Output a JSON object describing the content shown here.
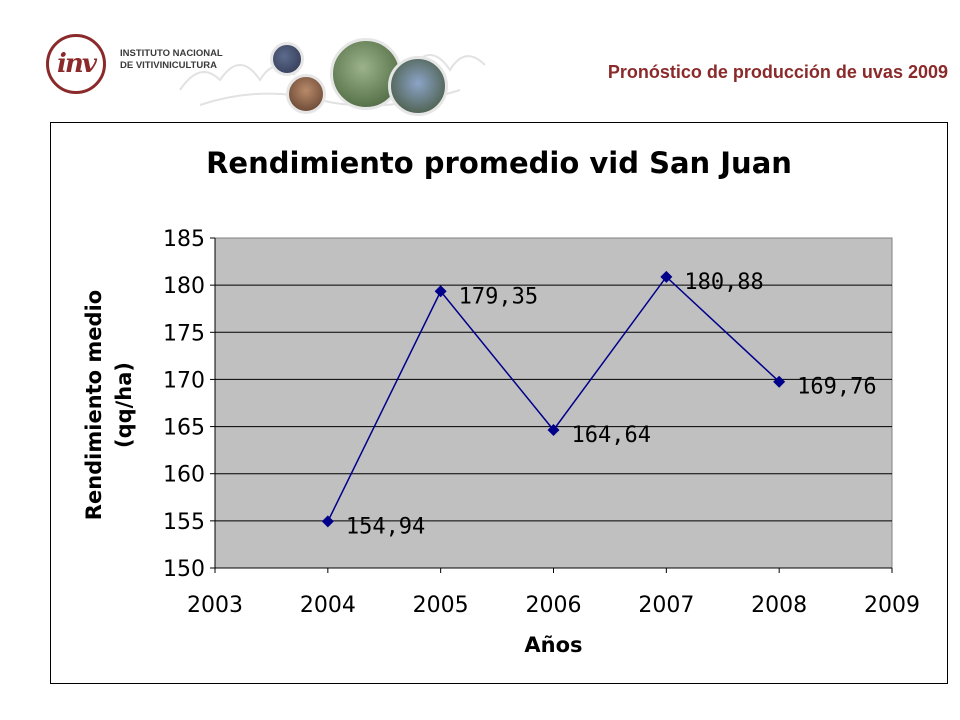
{
  "header": {
    "logo_mark": "inv",
    "logo_line1": "INSTITUTO NACIONAL",
    "logo_line2": "DE VITIVINICULTURA",
    "slide_title": "Pronóstico de producción de uvas 2009"
  },
  "colors": {
    "brand": "#8b2a2a",
    "plot_bg": "#c0c0c0",
    "series": "#00008b"
  },
  "chart_data": {
    "type": "line",
    "title": "Rendimiento promedio vid San Juan",
    "xlabel": "Años",
    "ylabel_line1": "Rendimiento medio",
    "ylabel_line2": "(qq/ha)",
    "xlim": [
      2003,
      2009
    ],
    "ylim": [
      150,
      185
    ],
    "x_ticks": [
      "2003",
      "2004",
      "2005",
      "2006",
      "2007",
      "2008",
      "2009"
    ],
    "y_ticks": [
      "150",
      "155",
      "160",
      "165",
      "170",
      "175",
      "180",
      "185"
    ],
    "grid": true,
    "series": [
      {
        "x": [
          2004,
          2005,
          2006,
          2007,
          2008
        ],
        "values": [
          154.94,
          179.35,
          164.64,
          180.88,
          169.76
        ],
        "labels": [
          "154,94",
          "179,35",
          "164,64",
          "180,88",
          "169,76"
        ]
      }
    ]
  }
}
